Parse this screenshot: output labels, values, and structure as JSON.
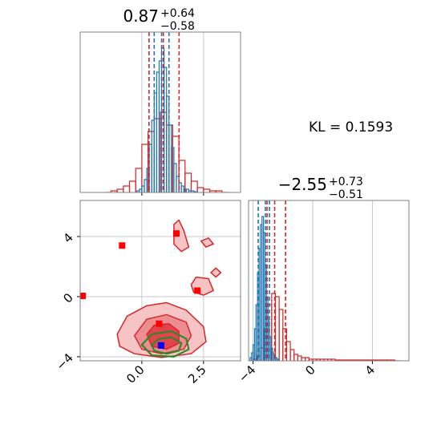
{
  "chart_data": [
    {
      "type": "histogram",
      "title": {
        "main": "0.87",
        "sup": "+0.64",
        "sub": "−0.58"
      },
      "xlim": [
        -2.5,
        4.0
      ],
      "ylim": [
        0,
        1
      ],
      "xticks": [
        0,
        2.5
      ],
      "tick_labels": false,
      "grid": true,
      "series": [
        {
          "color": "#d62728",
          "bins": [
            -1.5,
            -1.25,
            -1.0,
            -0.75,
            -0.5,
            -0.25,
            0.0,
            0.25,
            0.5,
            0.75,
            1.0,
            1.25,
            1.5,
            1.75,
            2.0,
            2.25,
            2.5,
            2.75,
            3.0,
            3.25,
            3.5
          ],
          "values": [
            0,
            0.01,
            0.02,
            0.04,
            0.07,
            0.15,
            0.3,
            0.38,
            0.46,
            0.5,
            0.42,
            0.35,
            0.2,
            0.12,
            0.07,
            0.03,
            0.02,
            0.01,
            0.01,
            0
          ]
        },
        {
          "color": "#1f77b4",
          "bins": [
            -0.2,
            -0.1,
            0.0,
            0.1,
            0.2,
            0.3,
            0.4,
            0.5,
            0.6,
            0.7,
            0.8,
            0.9,
            1.0,
            1.1,
            1.2,
            1.3,
            1.4,
            1.5,
            1.6,
            1.7,
            1.8,
            1.9,
            2.0,
            2.1,
            2.2
          ],
          "values": [
            0.01,
            0.02,
            0.04,
            0.08,
            0.15,
            0.3,
            0.45,
            0.62,
            0.75,
            0.82,
            0.9,
            0.78,
            0.6,
            0.42,
            0.28,
            0.18,
            0.1,
            0.06,
            0.04,
            0.02,
            0.02,
            0.01,
            0.01,
            0.005
          ]
        }
      ],
      "quantiles": [
        {
          "color": "#d62728",
          "values": [
            0.29,
            0.87,
            1.51
          ]
        },
        {
          "color": "#1f77b4",
          "values": [
            0.5,
            0.8,
            1.1
          ]
        }
      ]
    },
    {
      "type": "contour",
      "xlim": [
        -2.5,
        4.0
      ],
      "ylim": [
        -4.27,
        6.4
      ],
      "xticks": [
        {
          "value": 0,
          "label": "0.0"
        },
        {
          "value": 2.5,
          "label": "2.5"
        }
      ],
      "yticks": [
        {
          "value": -4,
          "label": "−4"
        },
        0,
        4
      ],
      "grid": true,
      "contours": [
        {
          "color": "#d62728",
          "fill": "#f7c4c6",
          "x": [
            -1.0,
            -0.6,
            0.2,
            1.0,
            1.8,
            2.5,
            2.6,
            2.0,
            0.8,
            -0.3,
            -0.9
          ],
          "y": [
            -2.5,
            -1.3,
            -0.6,
            -0.4,
            -0.9,
            -2.0,
            -3.0,
            -3.8,
            -4.05,
            -3.8,
            -3.3
          ]
        },
        {
          "color": "#d62728",
          "fill": "#ec8d92",
          "x": [
            -0.3,
            0.2,
            1.0,
            1.8,
            2.0,
            1.7,
            0.8,
            0.0
          ],
          "y": [
            -2.6,
            -1.5,
            -1.2,
            -1.7,
            -2.6,
            -3.5,
            -3.8,
            -3.5
          ]
        },
        {
          "color": "#d62728",
          "fill": "#e2434c",
          "x": [
            0.2,
            0.5,
            1.1,
            1.5,
            1.5,
            1.0,
            0.4
          ],
          "y": [
            -2.5,
            -1.9,
            -1.8,
            -2.3,
            -3.1,
            -3.5,
            -3.3
          ]
        },
        {
          "color": "#d62728",
          "fill": "#f7c4c6",
          "x": [
            1.3,
            1.3,
            1.5,
            1.7,
            1.9,
            1.6
          ],
          "y": [
            3.5,
            4.8,
            5.1,
            4.4,
            3.3,
            3.0
          ]
        },
        {
          "color": "#d62728",
          "fill": "#f7c4c6",
          "x": [
            2.0,
            2.2,
            2.7,
            2.9,
            2.5,
            2.1
          ],
          "y": [
            0.8,
            1.3,
            1.2,
            0.4,
            0.1,
            0.3
          ]
        },
        {
          "color": "#d62728",
          "fill": "#f7c4c6",
          "x": [
            2.8,
            3.0,
            3.2,
            3.0
          ],
          "y": [
            1.6,
            1.9,
            1.6,
            1.3
          ]
        },
        {
          "color": "#d62728",
          "fill": "#f7c4c6",
          "x": [
            2.4,
            2.7,
            2.9,
            2.6
          ],
          "y": [
            3.7,
            3.9,
            3.5,
            3.3
          ]
        },
        {
          "color": "#2a8a2a",
          "fill": "none",
          "x": [
            0.0,
            0.4,
            1.2,
            1.8,
            1.9,
            1.3,
            0.4
          ],
          "y": [
            -3.2,
            -2.5,
            -2.3,
            -2.8,
            -3.5,
            -4.0,
            -3.9
          ]
        },
        {
          "color": "#2a8a2a",
          "fill": "none",
          "x": [
            0.4,
            0.7,
            1.2,
            1.6,
            1.5,
            1.0,
            0.5
          ],
          "y": [
            -3.2,
            -2.8,
            -2.7,
            -3.1,
            -3.6,
            -3.8,
            -3.6
          ]
        }
      ],
      "points": [
        {
          "color": "#ff0000",
          "x": [
            -2.4,
            -0.8,
            1.4,
            2.25,
            0.7
          ],
          "y": [
            0.05,
            3.4,
            4.2,
            0.4,
            -1.8
          ]
        },
        {
          "color": "#0000ff",
          "x": [
            0.78
          ],
          "y": [
            -3.25
          ]
        }
      ]
    },
    {
      "type": "histogram",
      "title": {
        "main": "−2.55",
        "sup": "+0.73",
        "sub": "−0.51"
      },
      "xlim": [
        -4.3,
        6.45
      ],
      "ylim": [
        0,
        1
      ],
      "xticks": [
        {
          "value": -4,
          "label": "−4"
        },
        0,
        4
      ],
      "tick_labels": true,
      "grid": true,
      "series": [
        {
          "color": "#d62728",
          "bins": [
            -4.0,
            -3.75,
            -3.5,
            -3.25,
            -3.0,
            -2.75,
            -2.5,
            -2.25,
            -2.0,
            -1.75,
            -1.5,
            -1.25,
            -1.0,
            -0.75,
            -0.5,
            -0.25,
            0.0,
            0.25,
            0.5,
            0.75,
            1.0,
            1.25,
            1.5,
            1.75,
            2.0,
            2.25,
            2.5,
            2.75,
            3.0,
            3.25,
            3.5,
            3.75,
            4.0,
            4.25,
            4.5,
            4.75,
            5.0,
            5.25,
            5.5,
            5.75,
            6.0
          ],
          "values": [
            0.01,
            0.03,
            0.08,
            0.2,
            0.35,
            0.42,
            0.4,
            0.32,
            0.2,
            0.12,
            0.07,
            0.04,
            0.03,
            0.02,
            0.02,
            0.01,
            0.01,
            0.01,
            0.01,
            0.01,
            0.01,
            0.01,
            0.005,
            0.005,
            0.005,
            0.005,
            0.005,
            0.005,
            0.005,
            0.005,
            0.005,
            0.005,
            0.005,
            0.005,
            0.005,
            0.005,
            0.005,
            0.005,
            0,
            0
          ]
        },
        {
          "color": "#1f77b4",
          "bins": [
            -4.2,
            -4.1,
            -4.0,
            -3.9,
            -3.8,
            -3.7,
            -3.6,
            -3.5,
            -3.4,
            -3.3,
            -3.2,
            -3.1,
            -3.0,
            -2.9,
            -2.8,
            -2.7,
            -2.6,
            -2.5,
            -2.4,
            -2.3,
            -2.2
          ],
          "values": [
            0.02,
            0.05,
            0.1,
            0.2,
            0.35,
            0.55,
            0.7,
            0.85,
            0.9,
            0.8,
            0.6,
            0.4,
            0.25,
            0.15,
            0.08,
            0.05,
            0.03,
            0.02,
            0.01,
            0
          ]
        }
      ],
      "quantiles": [
        {
          "color": "#d62728",
          "values": [
            -3.06,
            -2.55,
            -1.82
          ]
        },
        {
          "color": "#1f77b4",
          "values": [
            -3.65,
            -3.17,
            -2.9
          ]
        }
      ]
    }
  ],
  "annotation": "KL = 0.1593"
}
